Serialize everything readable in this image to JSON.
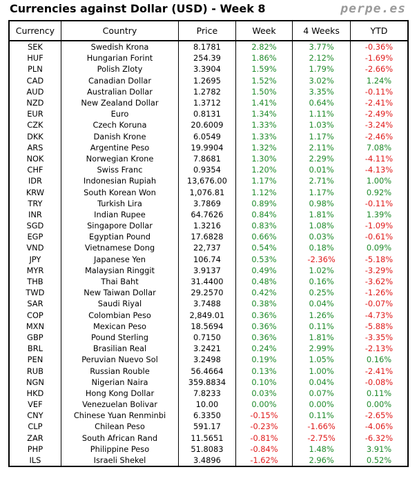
{
  "title": "Currencies against Dollar (USD) - Week 8",
  "brand": "perpe.es",
  "colors": {
    "positive": "#1e8a2a",
    "negative": "#e01a1a"
  },
  "columns": [
    "Currency",
    "Country",
    "Price",
    "Week",
    "4 Weeks",
    "YTD"
  ],
  "rows": [
    [
      "SEK",
      "Swedish Krona",
      "8.1781",
      "2.82%",
      "3.77%",
      "-0.36%"
    ],
    [
      "HUF",
      "Hungarian Forint",
      "254.39",
      "1.86%",
      "2.12%",
      "-1.69%"
    ],
    [
      "PLN",
      "Polish Zloty",
      "3.3904",
      "1.59%",
      "1.79%",
      "-2.66%"
    ],
    [
      "CAD",
      "Canadian Dollar",
      "1.2695",
      "1.52%",
      "3.02%",
      "1.24%"
    ],
    [
      "AUD",
      "Australian Dollar",
      "1.2782",
      "1.50%",
      "3.35%",
      "-0.11%"
    ],
    [
      "NZD",
      "New Zealand Dollar",
      "1.3712",
      "1.41%",
      "0.64%",
      "-2.41%"
    ],
    [
      "EUR",
      "Euro",
      "0.8131",
      "1.34%",
      "1.11%",
      "-2.49%"
    ],
    [
      "CZK",
      "Czech Koruna",
      "20.6009",
      "1.33%",
      "1.03%",
      "-3.24%"
    ],
    [
      "DKK",
      "Danish Krone",
      "6.0549",
      "1.33%",
      "1.17%",
      "-2.46%"
    ],
    [
      "ARS",
      "Argentine Peso",
      "19.9904",
      "1.32%",
      "2.11%",
      "7.08%"
    ],
    [
      "NOK",
      "Norwegian Krone",
      "7.8681",
      "1.30%",
      "2.29%",
      "-4.11%"
    ],
    [
      "CHF",
      "Swiss Franc",
      "0.9354",
      "1.20%",
      "0.01%",
      "-4.13%"
    ],
    [
      "IDR",
      "Indonesian Rupiah",
      "13,676.00",
      "1.17%",
      "2.71%",
      "1.00%"
    ],
    [
      "KRW",
      "South Korean Won",
      "1,076.81",
      "1.12%",
      "1.17%",
      "0.92%"
    ],
    [
      "TRY",
      "Turkish Lira",
      "3.7869",
      "0.89%",
      "0.98%",
      "-0.11%"
    ],
    [
      "INR",
      "Indian Rupee",
      "64.7626",
      "0.84%",
      "1.81%",
      "1.39%"
    ],
    [
      "SGD",
      "Singapore Dollar",
      "1.3216",
      "0.83%",
      "1.08%",
      "-1.09%"
    ],
    [
      "EGP",
      "Egyptian Pound",
      "17.6828",
      "0.66%",
      "0.03%",
      "-0.61%"
    ],
    [
      "VND",
      "Vietnamese Dong",
      "22,737",
      "0.54%",
      "0.18%",
      "0.09%"
    ],
    [
      "JPY",
      "Japanese Yen",
      "106.74",
      "0.53%",
      "-2.36%",
      "-5.18%"
    ],
    [
      "MYR",
      "Malaysian Ringgit",
      "3.9137",
      "0.49%",
      "1.02%",
      "-3.29%"
    ],
    [
      "THB",
      "Thai Baht",
      "31.4400",
      "0.48%",
      "0.16%",
      "-3.62%"
    ],
    [
      "TWD",
      "New Taiwan Dollar",
      "29.2570",
      "0.42%",
      "0.25%",
      "-1.26%"
    ],
    [
      "SAR",
      "Saudi Riyal",
      "3.7488",
      "0.38%",
      "0.04%",
      "-0.07%"
    ],
    [
      "COP",
      "Colombian Peso",
      "2,849.01",
      "0.36%",
      "1.26%",
      "-4.73%"
    ],
    [
      "MXN",
      "Mexican Peso",
      "18.5694",
      "0.36%",
      "0.11%",
      "-5.88%"
    ],
    [
      "GBP",
      "Pound Sterling",
      "0.7150",
      "0.36%",
      "1.81%",
      "-3.35%"
    ],
    [
      "BRL",
      "Brasilian Real",
      "3.2421",
      "0.24%",
      "2.99%",
      "-2.13%"
    ],
    [
      "PEN",
      "Peruvian Nuevo Sol",
      "3.2498",
      "0.19%",
      "1.05%",
      "0.16%"
    ],
    [
      "RUB",
      "Russian Rouble",
      "56.4664",
      "0.13%",
      "1.00%",
      "-2.41%"
    ],
    [
      "NGN",
      "Nigerian Naira",
      "359.8834",
      "0.10%",
      "0.04%",
      "-0.08%"
    ],
    [
      "HKD",
      "Hong Kong Dollar",
      "7.8233",
      "0.03%",
      "0.07%",
      "0.11%"
    ],
    [
      "VEF",
      "Venezuelan Bolivar",
      "10.00",
      "0.00%",
      "0.00%",
      "0.00%"
    ],
    [
      "CNY",
      "Chinese Yuan Renminbi",
      "6.3350",
      "-0.15%",
      "0.11%",
      "-2.65%"
    ],
    [
      "CLP",
      "Chilean Peso",
      "591.17",
      "-0.23%",
      "-1.66%",
      "-4.06%"
    ],
    [
      "ZAR",
      "South African Rand",
      "11.5651",
      "-0.81%",
      "-2.75%",
      "-6.32%"
    ],
    [
      "PHP",
      "Philippine Peso",
      "51.8083",
      "-0.84%",
      "1.48%",
      "3.91%"
    ],
    [
      "ILS",
      "Israeli Shekel",
      "3.4896",
      "-1.62%",
      "2.96%",
      "0.52%"
    ]
  ]
}
